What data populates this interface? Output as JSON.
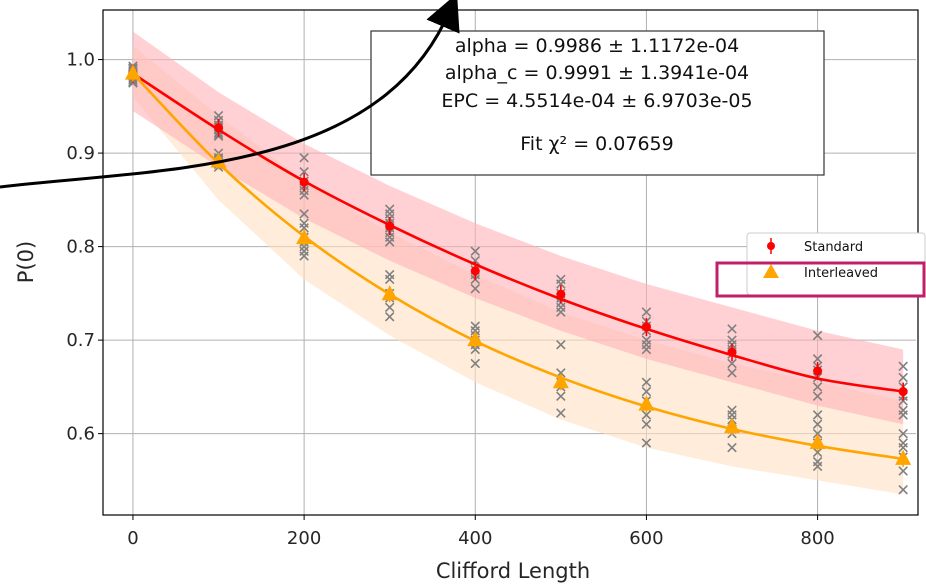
{
  "chart_data": {
    "type": "scatter",
    "xlabel": "Clifford Length",
    "ylabel": "P(0)",
    "xlim": [
      -35,
      915
    ],
    "ylim": [
      0.513,
      1.053
    ],
    "x_ticks": [
      0,
      200,
      400,
      600,
      800
    ],
    "x_tick_labels": [
      "0",
      "200",
      "400",
      "600",
      "800"
    ],
    "y_ticks": [
      0.6,
      0.7,
      0.8,
      0.9,
      1.0
    ],
    "y_tick_labels": [
      "0.6",
      "0.7",
      "0.8",
      "0.9",
      "1.0"
    ],
    "grid": true,
    "legend_placement": "right, partially clipped",
    "annotation_lines": [
      "alpha =  0.9986 ±  1.1172e-04",
      "alpha_c =  0.9991 ±  1.3941e-04",
      "EPC =  4.5514e-04 ±  6.9703e-05",
      "Fit χ² =  0.07659"
    ],
    "series": [
      {
        "name": "Standard",
        "color": "#ff0000",
        "band_color": "#ffb3b8",
        "marker": "circle",
        "x": [
          0,
          100,
          200,
          300,
          400,
          500,
          600,
          700,
          800,
          900
        ],
        "mean": [
          0.985,
          0.927,
          0.869,
          0.822,
          0.774,
          0.749,
          0.714,
          0.687,
          0.667,
          0.645
        ],
        "fit": [
          0.985,
          0.925,
          0.87,
          0.823,
          0.781,
          0.744,
          0.712,
          0.684,
          0.659,
          0.645
        ],
        "band_upper": [
          1.03,
          0.965,
          0.91,
          0.865,
          0.825,
          0.79,
          0.76,
          0.735,
          0.71,
          0.69
        ],
        "band_lower": [
          0.945,
          0.885,
          0.83,
          0.785,
          0.745,
          0.71,
          0.68,
          0.655,
          0.63,
          0.61
        ]
      },
      {
        "name": "Interleaved",
        "color": "#ffa500",
        "band_color": "#ffe0c2",
        "marker": "triangle",
        "x": [
          0,
          100,
          200,
          300,
          400,
          500,
          600,
          700,
          800,
          900
        ],
        "mean": [
          0.985,
          0.891,
          0.809,
          0.749,
          0.7,
          0.655,
          0.631,
          0.607,
          0.59,
          0.573
        ],
        "fit": [
          0.985,
          0.889,
          0.811,
          0.749,
          0.699,
          0.66,
          0.629,
          0.605,
          0.587,
          0.573
        ],
        "band_upper": [
          1.015,
          0.94,
          0.87,
          0.815,
          0.77,
          0.73,
          0.7,
          0.675,
          0.655,
          0.635
        ],
        "band_lower": [
          0.96,
          0.85,
          0.765,
          0.705,
          0.655,
          0.615,
          0.585,
          0.565,
          0.55,
          0.535
        ]
      }
    ],
    "raw_points": {
      "color": "#808080",
      "marker": "x",
      "x": [
        0,
        100,
        200,
        300,
        400,
        500,
        600,
        700,
        800,
        900
      ],
      "y": [
        [
          0.975,
          0.98,
          0.985,
          0.99,
          0.993,
          0.978,
          0.982,
          0.988,
          0.991,
          0.976,
          0.984,
          0.987
        ],
        [
          0.93,
          0.925,
          0.92,
          0.935,
          0.94,
          0.918,
          0.928,
          0.922,
          0.895,
          0.89,
          0.885,
          0.9,
          0.888,
          0.893
        ],
        [
          0.895,
          0.88,
          0.87,
          0.86,
          0.865,
          0.855,
          0.835,
          0.825,
          0.82,
          0.81,
          0.8,
          0.795,
          0.79,
          0.805
        ],
        [
          0.84,
          0.835,
          0.83,
          0.825,
          0.82,
          0.815,
          0.81,
          0.805,
          0.77,
          0.765,
          0.75,
          0.745,
          0.735,
          0.725
        ],
        [
          0.795,
          0.785,
          0.775,
          0.77,
          0.765,
          0.755,
          0.715,
          0.71,
          0.705,
          0.7,
          0.695,
          0.69,
          0.675
        ],
        [
          0.765,
          0.76,
          0.75,
          0.745,
          0.74,
          0.735,
          0.73,
          0.695,
          0.665,
          0.655,
          0.65,
          0.64,
          0.622
        ],
        [
          0.73,
          0.72,
          0.715,
          0.71,
          0.7,
          0.695,
          0.69,
          0.655,
          0.645,
          0.635,
          0.62,
          0.61,
          0.59
        ],
        [
          0.712,
          0.7,
          0.695,
          0.69,
          0.685,
          0.675,
          0.665,
          0.625,
          0.62,
          0.615,
          0.605,
          0.6,
          0.585
        ],
        [
          0.705,
          0.68,
          0.672,
          0.668,
          0.66,
          0.65,
          0.64,
          0.62,
          0.61,
          0.6,
          0.59,
          0.58,
          0.57,
          0.565
        ],
        [
          0.672,
          0.66,
          0.65,
          0.64,
          0.635,
          0.625,
          0.62,
          0.6,
          0.59,
          0.585,
          0.575,
          0.56,
          0.54
        ]
      ]
    }
  }
}
